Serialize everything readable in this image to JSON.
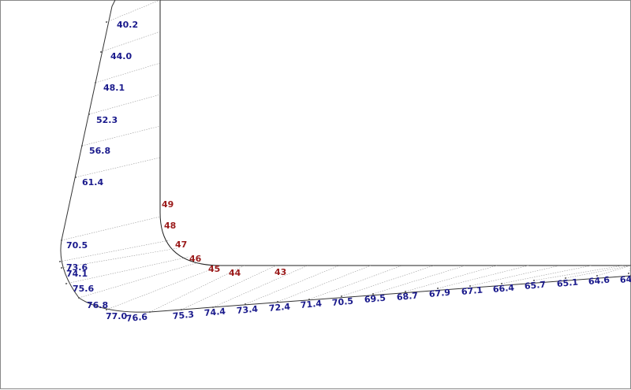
{
  "outer_labels": [
    "40.2",
    "44.0",
    "48.1",
    "52.3",
    "56.8",
    "61.4",
    "70.5",
    "73.6",
    "74.1",
    "75.6",
    "76.8",
    "77.0",
    "76.6",
    "75.3",
    "74.4",
    "73.4",
    "72.4",
    "71.4",
    "70.5",
    "69.5",
    "68.7",
    "67.9",
    "67.1",
    "66.4",
    "65.7",
    "65.1",
    "64.6",
    "64"
  ],
  "inner_labels": [
    "49",
    "48",
    "47",
    "46",
    "45",
    "44",
    "43"
  ]
}
